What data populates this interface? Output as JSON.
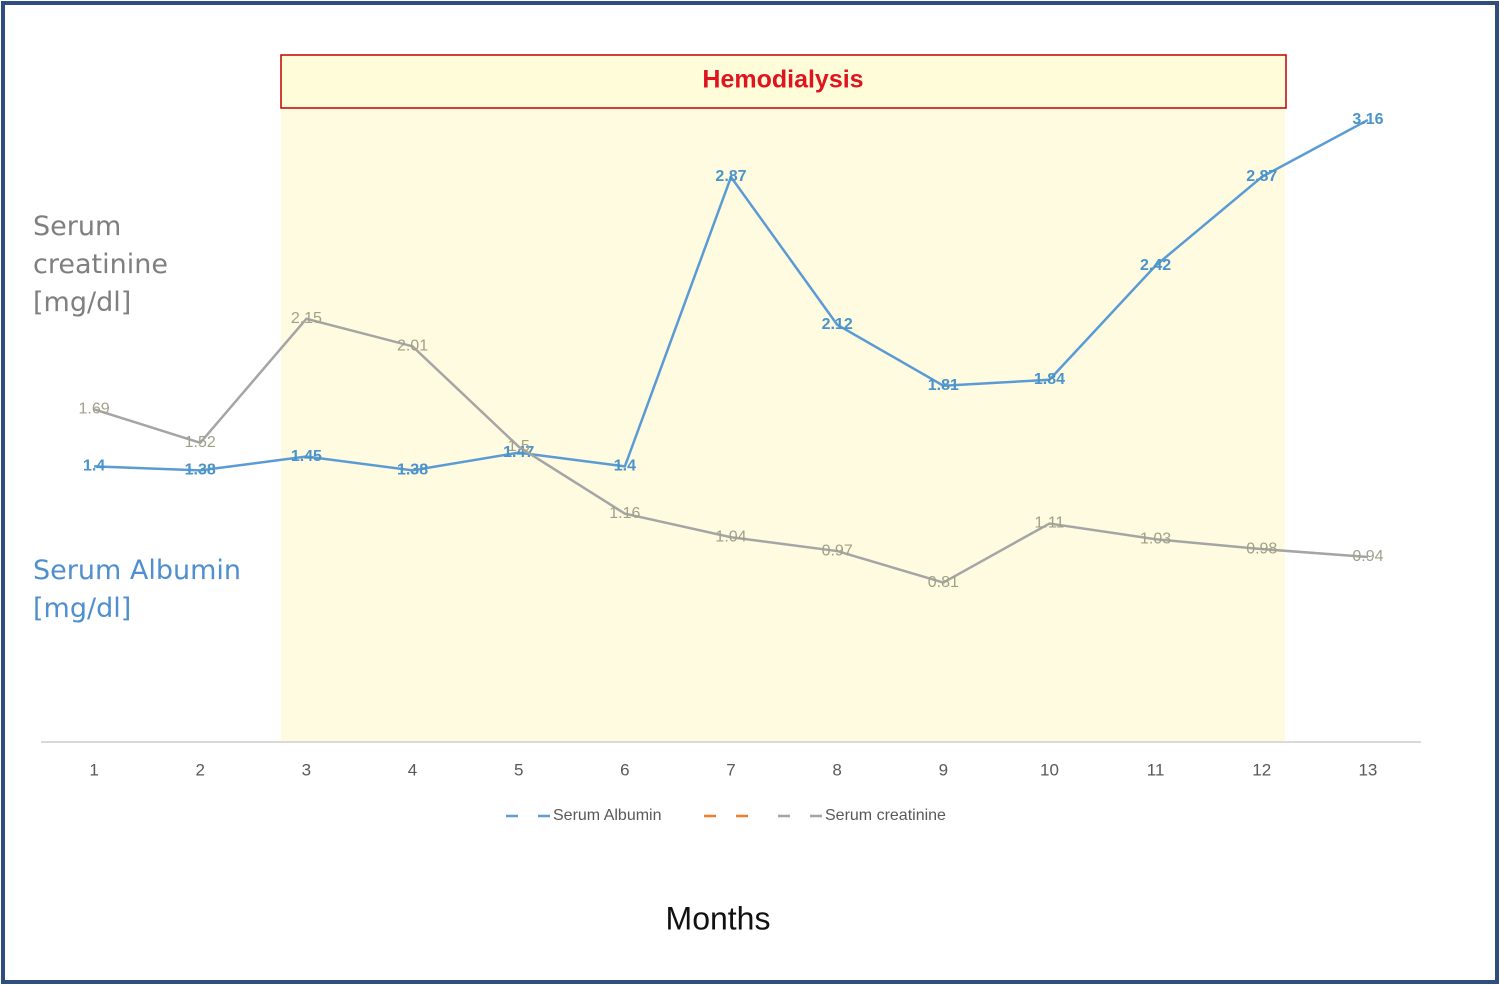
{
  "chart_data": {
    "type": "line",
    "annotation": "Hemodialysis",
    "y_label_top": "Serum creatinine [mg/dl]",
    "y_label_bottom": "Serum Albumin [mg/dl]",
    "x_label": "Months",
    "categories": [
      "1",
      "2",
      "3",
      "4",
      "5",
      "6",
      "7",
      "8",
      "9",
      "10",
      "11",
      "12",
      "13"
    ],
    "ylim": [
      0,
      3.5
    ],
    "series": [
      {
        "name": "Serum Albumin",
        "color": "#5b9bd5",
        "values": [
          1.4,
          1.38,
          1.45,
          1.38,
          1.47,
          1.4,
          2.87,
          2.12,
          1.81,
          1.84,
          2.42,
          2.87,
          3.16
        ]
      },
      {
        "name": "Serum creatinine",
        "color": "#a5a5a5",
        "values": [
          1.69,
          1.52,
          2.15,
          2.01,
          1.5,
          1.16,
          1.04,
          0.97,
          0.81,
          1.11,
          1.03,
          0.98,
          0.94
        ]
      }
    ]
  }
}
